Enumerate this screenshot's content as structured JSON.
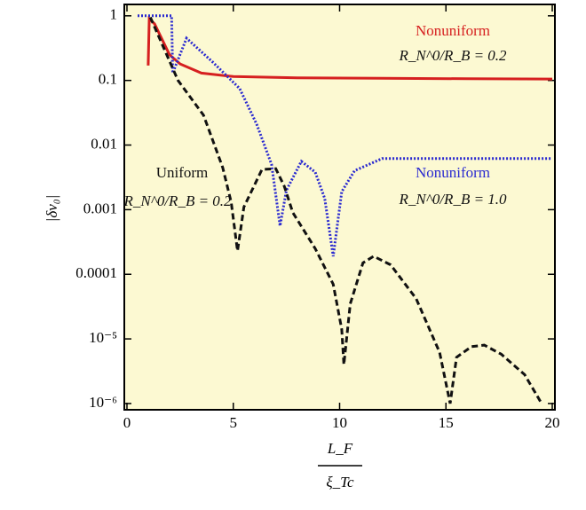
{
  "chart_data": {
    "type": "line",
    "log_y": true,
    "y_label": "|δν₀|",
    "x_label_numerator": "L_F",
    "x_label_denominator": "ξ_Tc",
    "xlim": [
      0,
      20
    ],
    "xticks": [
      0,
      5,
      10,
      15,
      20
    ],
    "ylim": [
      8e-07,
      1.5
    ],
    "yticks": [
      {
        "value": 1e-06,
        "label": "10⁻⁶"
      },
      {
        "value": 1e-05,
        "label": "10⁻⁵"
      },
      0.0001,
      0.001,
      0.01,
      0.1,
      1
    ],
    "series": [
      {
        "color": "#d62020",
        "dash": "solid",
        "x": [
          1.0,
          1.05,
          1.3,
          1.7,
          2.0,
          2.5,
          3.5,
          5,
          8,
          12,
          16,
          20
        ],
        "values": [
          0.17,
          0.9,
          0.75,
          0.4,
          0.25,
          0.18,
          0.13,
          0.115,
          0.11,
          0.108,
          0.106,
          0.105
        ]
      },
      {
        "color": "#2a2ad0",
        "dash": "dot",
        "x": [
          0.5,
          2.1,
          2.15,
          2.8,
          4.05,
          5.3,
          6.1,
          6.8,
          7.2,
          7.5,
          8.2,
          8.85,
          9.3,
          9.7,
          10.1,
          10.7,
          12,
          16,
          20
        ],
        "values": [
          1,
          1,
          0.13,
          0.45,
          0.19,
          0.075,
          0.021,
          0.005,
          0.00056,
          0.002,
          0.0056,
          0.0038,
          0.0015,
          0.00019,
          0.0019,
          0.004,
          0.0062,
          0.0062,
          0.0062
        ]
      },
      {
        "color": "#111111",
        "dash": "dash",
        "x": [
          1.1,
          2.4,
          3.6,
          4.5,
          4.9,
          5.2,
          5.5,
          6.35,
          7.0,
          7.4,
          7.8,
          8.85,
          9.7,
          10.1,
          10.2,
          10.5,
          11.1,
          11.6,
          12.4,
          13.6,
          14.7,
          15.2,
          15.5,
          16.2,
          16.8,
          17.6,
          18.7,
          19.5
        ],
        "values": [
          0.95,
          0.1,
          0.029,
          0.0045,
          0.0013,
          0.00023,
          0.0011,
          0.0042,
          0.0043,
          0.0023,
          0.0009,
          0.00025,
          7e-05,
          1.4e-05,
          4e-06,
          3.5e-05,
          0.00015,
          0.00019,
          0.00014,
          4.2e-05,
          6.2e-06,
          1e-06,
          5.2e-06,
          7.6e-06,
          8e-06,
          5.8e-06,
          2.8e-06,
          1e-06
        ]
      }
    ],
    "annotations": [
      {
        "text": "Nonuniform",
        "color": "#d62020"
      },
      {
        "text": "R_N^0/R_B = 0.2",
        "color": "#111111"
      },
      {
        "text": "Uniform",
        "color": "#111111"
      },
      {
        "text": "R_N^0/R_B = 0.2",
        "color": "#111111"
      },
      {
        "text": "Nonuniform",
        "color": "#2a2ad0"
      },
      {
        "text": "R_N^0/R_B = 1.0",
        "color": "#111111"
      }
    ]
  }
}
